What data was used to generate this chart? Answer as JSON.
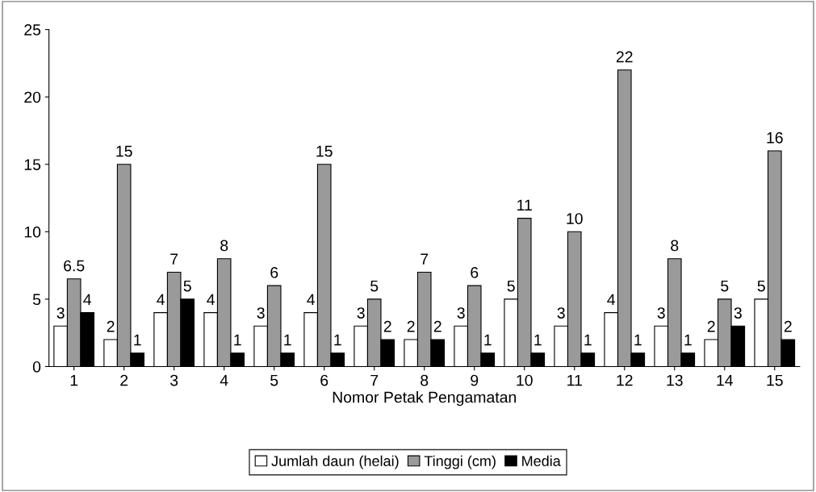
{
  "chart_data": {
    "type": "bar",
    "xlabel": "Nomor Petak Pengamatan",
    "categories": [
      "1",
      "2",
      "3",
      "4",
      "5",
      "6",
      "7",
      "8",
      "9",
      "10",
      "11",
      "12",
      "13",
      "14",
      "15"
    ],
    "series": [
      {
        "name": "Jumlah daun (helai)",
        "color": "#ffffff",
        "values": [
          3,
          2,
          4,
          4,
          3,
          4,
          3,
          2,
          3,
          5,
          3,
          4,
          3,
          2,
          5
        ]
      },
      {
        "name": "Tinggi (cm)",
        "color": "#9a9a9a",
        "values": [
          6.5,
          15,
          7,
          8,
          6,
          15,
          5,
          7,
          6,
          11,
          10,
          22,
          8,
          5,
          16
        ]
      },
      {
        "name": "Media",
        "color": "#000000",
        "values": [
          4,
          1,
          5,
          1,
          1,
          1,
          2,
          2,
          1,
          1,
          1,
          1,
          1,
          3,
          2
        ]
      }
    ],
    "ylim": [
      0,
      25
    ],
    "yticks": [
      0,
      5,
      10,
      15,
      20,
      25
    ],
    "grid": false,
    "legend": "bottom",
    "data_labels": true
  }
}
